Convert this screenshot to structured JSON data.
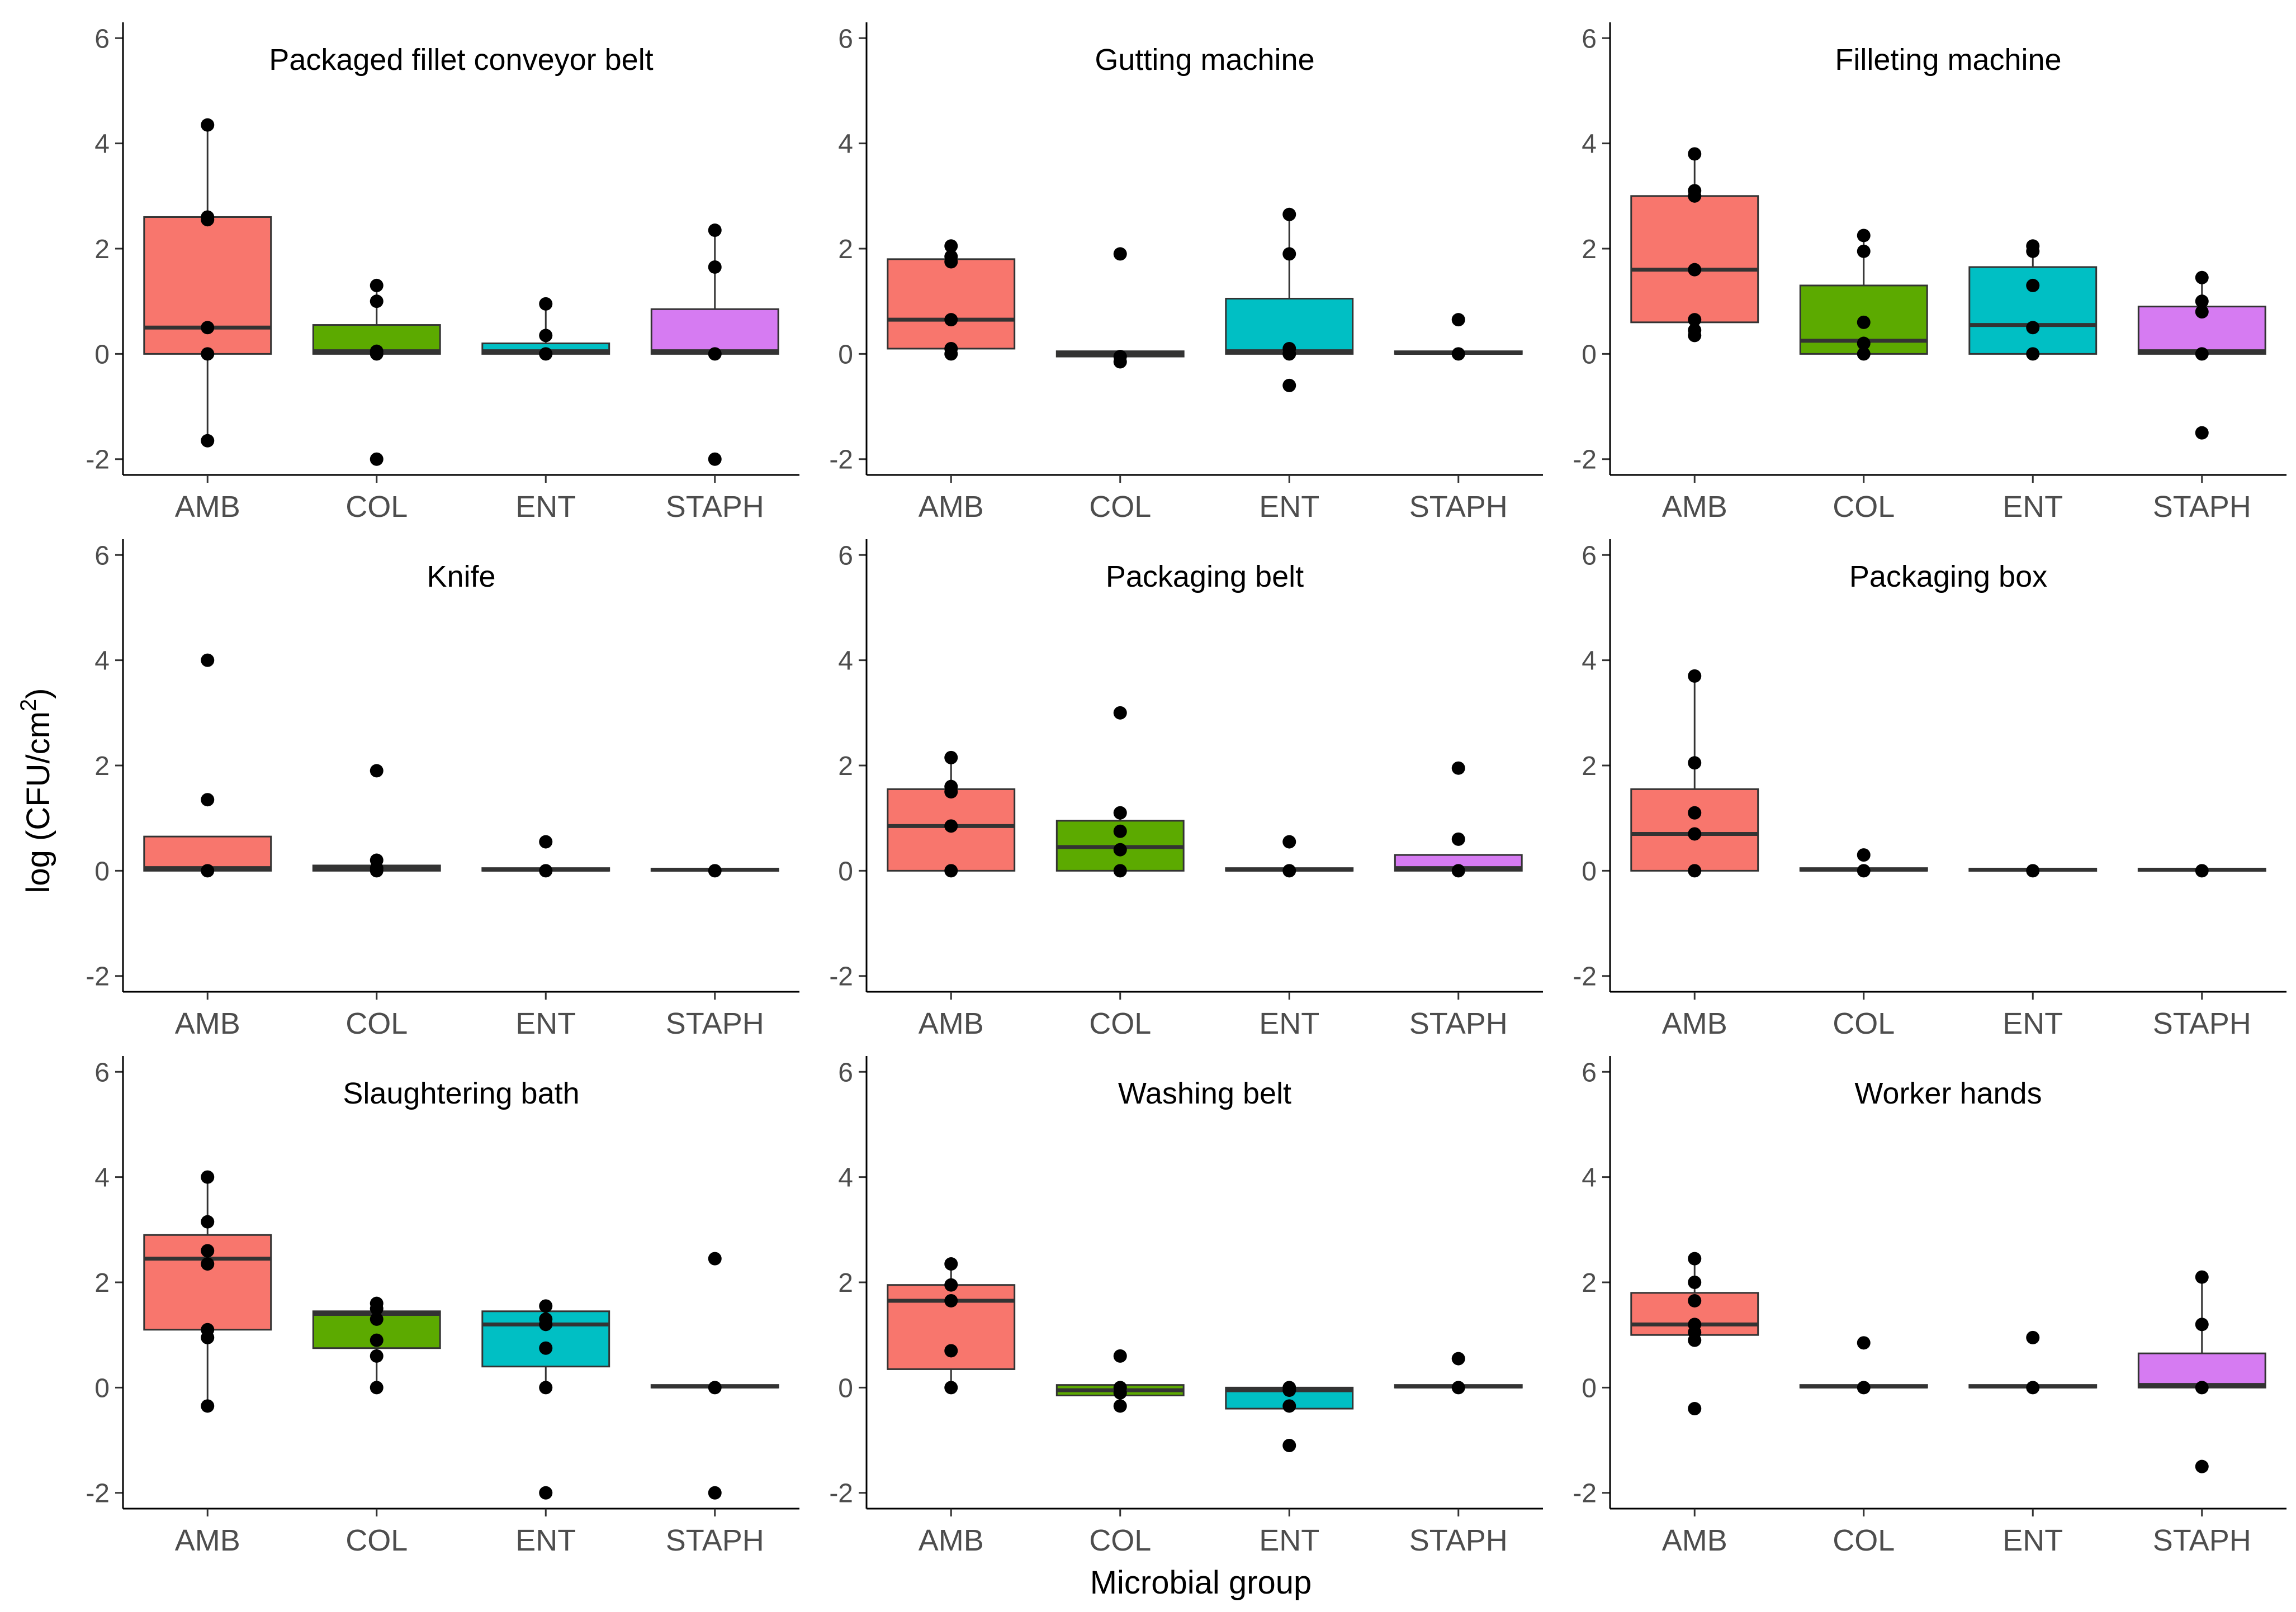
{
  "chart_data": {
    "type": "box",
    "xlabel": "Microbial group",
    "ylabel_prefix": "log (CFU/cm",
    "ylabel_superscript": "2",
    "ylabel_suffix": ")",
    "ylim": [
      -2.3,
      6.3
    ],
    "yticks": [
      -2,
      0,
      2,
      4,
      6
    ],
    "categories": [
      "AMB",
      "COL",
      "ENT",
      "STAPH"
    ],
    "colors": {
      "AMB": "#F8766D",
      "COL": "#5CAA00",
      "ENT": "#00BFC4",
      "STAPH": "#D67BF2"
    },
    "panels": [
      {
        "title": "Packaged fillet conveyor belt",
        "groups": [
          {
            "name": "AMB",
            "q1": 0,
            "median": 0.5,
            "q3": 2.6,
            "lower": -1.65,
            "upper": 4.35,
            "points": [
              4.35,
              2.6,
              2.55,
              0.5,
              0,
              -1.65
            ]
          },
          {
            "name": "COL",
            "q1": 0,
            "median": 0.05,
            "q3": 0.55,
            "lower": 0,
            "upper": 1.3,
            "points": [
              1.3,
              1.0,
              0.05,
              0,
              -2.0
            ]
          },
          {
            "name": "ENT",
            "q1": 0,
            "median": 0.05,
            "q3": 0.2,
            "lower": 0,
            "upper": 0.95,
            "points": [
              0.95,
              0.35,
              0
            ]
          },
          {
            "name": "STAPH",
            "q1": 0,
            "median": 0.05,
            "q3": 0.85,
            "lower": 0,
            "upper": 2.35,
            "points": [
              2.35,
              1.65,
              0,
              -2.0
            ]
          }
        ]
      },
      {
        "title": "Gutting machine",
        "groups": [
          {
            "name": "AMB",
            "q1": 0.1,
            "median": 0.65,
            "q3": 1.8,
            "lower": 0,
            "upper": 2.05,
            "points": [
              2.05,
              1.85,
              1.75,
              0.65,
              0.1,
              0
            ]
          },
          {
            "name": "COL",
            "q1": -0.05,
            "median": 0,
            "q3": 0.05,
            "lower": -0.05,
            "upper": 0.05,
            "points": [
              1.9,
              -0.05,
              -0.15
            ]
          },
          {
            "name": "ENT",
            "q1": 0,
            "median": 0.05,
            "q3": 1.05,
            "lower": 0,
            "upper": 2.65,
            "points": [
              2.65,
              1.9,
              0.1,
              0,
              -0.6
            ]
          },
          {
            "name": "STAPH",
            "q1": 0,
            "median": 0.02,
            "q3": 0.05,
            "lower": 0,
            "upper": 0.05,
            "points": [
              0.65,
              0
            ]
          }
        ]
      },
      {
        "title": "Filleting machine",
        "groups": [
          {
            "name": "AMB",
            "q1": 0.6,
            "median": 1.6,
            "q3": 3.0,
            "lower": 0.35,
            "upper": 3.8,
            "points": [
              3.8,
              3.1,
              3.0,
              1.6,
              0.65,
              0.45,
              0.35
            ]
          },
          {
            "name": "COL",
            "q1": 0,
            "median": 0.25,
            "q3": 1.3,
            "lower": 0,
            "upper": 2.25,
            "points": [
              2.25,
              1.95,
              0.6,
              0.2,
              0
            ]
          },
          {
            "name": "ENT",
            "q1": 0,
            "median": 0.55,
            "q3": 1.65,
            "lower": 0,
            "upper": 2.05,
            "points": [
              2.05,
              1.95,
              1.3,
              0.5,
              0
            ]
          },
          {
            "name": "STAPH",
            "q1": 0,
            "median": 0.05,
            "q3": 0.9,
            "lower": 0,
            "upper": 1.45,
            "points": [
              1.45,
              1.0,
              0.8,
              0,
              -1.5
            ]
          }
        ]
      },
      {
        "title": "Knife",
        "groups": [
          {
            "name": "AMB",
            "q1": 0,
            "median": 0.05,
            "q3": 0.65,
            "lower": 0,
            "upper": 0.65,
            "points": [
              4.0,
              1.35,
              0
            ]
          },
          {
            "name": "COL",
            "q1": 0,
            "median": 0.05,
            "q3": 0.1,
            "lower": 0,
            "upper": 0.1,
            "points": [
              1.9,
              0.2,
              0.05,
              0
            ]
          },
          {
            "name": "ENT",
            "q1": 0,
            "median": 0.02,
            "q3": 0.05,
            "lower": 0,
            "upper": 0.05,
            "points": [
              0.55,
              0
            ]
          },
          {
            "name": "STAPH",
            "q1": 0,
            "median": 0.02,
            "q3": 0.04,
            "lower": 0,
            "upper": 0.04,
            "points": [
              0
            ]
          }
        ]
      },
      {
        "title": "Packaging belt",
        "groups": [
          {
            "name": "AMB",
            "q1": 0,
            "median": 0.85,
            "q3": 1.55,
            "lower": 0,
            "upper": 2.15,
            "points": [
              2.15,
              1.6,
              1.5,
              0.85,
              0
            ]
          },
          {
            "name": "COL",
            "q1": 0,
            "median": 0.45,
            "q3": 0.95,
            "lower": 0,
            "upper": 1.1,
            "points": [
              3.0,
              1.1,
              0.75,
              0.4,
              0
            ]
          },
          {
            "name": "ENT",
            "q1": 0,
            "median": 0.02,
            "q3": 0.05,
            "lower": 0,
            "upper": 0.05,
            "points": [
              0.55,
              0
            ]
          },
          {
            "name": "STAPH",
            "q1": 0,
            "median": 0.05,
            "q3": 0.3,
            "lower": 0,
            "upper": 0.3,
            "points": [
              1.95,
              0.6,
              0
            ]
          }
        ]
      },
      {
        "title": "Packaging box",
        "groups": [
          {
            "name": "AMB",
            "q1": 0,
            "median": 0.7,
            "q3": 1.55,
            "lower": 0,
            "upper": 3.7,
            "points": [
              3.7,
              2.05,
              1.1,
              0.7,
              0
            ]
          },
          {
            "name": "COL",
            "q1": 0,
            "median": 0.02,
            "q3": 0.05,
            "lower": 0,
            "upper": 0.05,
            "points": [
              0.3,
              0
            ]
          },
          {
            "name": "ENT",
            "q1": 0,
            "median": 0.02,
            "q3": 0.04,
            "lower": 0,
            "upper": 0.04,
            "points": [
              0
            ]
          },
          {
            "name": "STAPH",
            "q1": 0,
            "median": 0.02,
            "q3": 0.04,
            "lower": 0,
            "upper": 0.04,
            "points": [
              0
            ]
          }
        ]
      },
      {
        "title": "Slaughtering bath",
        "groups": [
          {
            "name": "AMB",
            "q1": 1.1,
            "median": 2.45,
            "q3": 2.9,
            "lower": -0.35,
            "upper": 4.0,
            "points": [
              4.0,
              3.15,
              2.6,
              2.35,
              1.1,
              0.95,
              -0.35
            ]
          },
          {
            "name": "COL",
            "q1": 0.75,
            "median": 1.4,
            "q3": 1.45,
            "lower": 0,
            "upper": 1.6,
            "points": [
              1.6,
              1.5,
              1.3,
              0.9,
              0.6,
              0
            ]
          },
          {
            "name": "ENT",
            "q1": 0.4,
            "median": 1.2,
            "q3": 1.45,
            "lower": 0,
            "upper": 1.55,
            "points": [
              1.55,
              1.3,
              1.2,
              0.75,
              0,
              -2.0
            ]
          },
          {
            "name": "STAPH",
            "q1": 0,
            "median": 0.02,
            "q3": 0.05,
            "lower": 0,
            "upper": 0.05,
            "points": [
              2.45,
              0,
              -2.0
            ]
          }
        ]
      },
      {
        "title": "Washing belt",
        "groups": [
          {
            "name": "AMB",
            "q1": 0.35,
            "median": 1.65,
            "q3": 1.95,
            "lower": 0,
            "upper": 2.35,
            "points": [
              2.35,
              1.95,
              1.65,
              0.7,
              0
            ]
          },
          {
            "name": "COL",
            "q1": -0.15,
            "median": -0.05,
            "q3": 0.05,
            "lower": -0.35,
            "upper": 0.05,
            "points": [
              0.6,
              0,
              -0.1,
              -0.35
            ]
          },
          {
            "name": "ENT",
            "q1": -0.4,
            "median": -0.05,
            "q3": 0,
            "lower": -0.4,
            "upper": 0,
            "points": [
              0,
              -0.05,
              -0.35,
              -1.1
            ]
          },
          {
            "name": "STAPH",
            "q1": 0,
            "median": 0.02,
            "q3": 0.05,
            "lower": 0,
            "upper": 0.05,
            "points": [
              0.55,
              0
            ]
          }
        ]
      },
      {
        "title": "Worker hands",
        "groups": [
          {
            "name": "AMB",
            "q1": 1.0,
            "median": 1.2,
            "q3": 1.8,
            "lower": 0.9,
            "upper": 2.45,
            "points": [
              2.45,
              2.0,
              1.65,
              1.2,
              1.05,
              0.9,
              -0.4
            ]
          },
          {
            "name": "COL",
            "q1": 0,
            "median": 0.02,
            "q3": 0.05,
            "lower": 0,
            "upper": 0.05,
            "points": [
              0.85,
              0
            ]
          },
          {
            "name": "ENT",
            "q1": 0,
            "median": 0.02,
            "q3": 0.05,
            "lower": 0,
            "upper": 0.05,
            "points": [
              0.95,
              0
            ]
          },
          {
            "name": "STAPH",
            "q1": 0,
            "median": 0.05,
            "q3": 0.65,
            "lower": 0,
            "upper": 2.1,
            "points": [
              2.1,
              1.2,
              0,
              -1.5
            ]
          }
        ]
      }
    ]
  }
}
